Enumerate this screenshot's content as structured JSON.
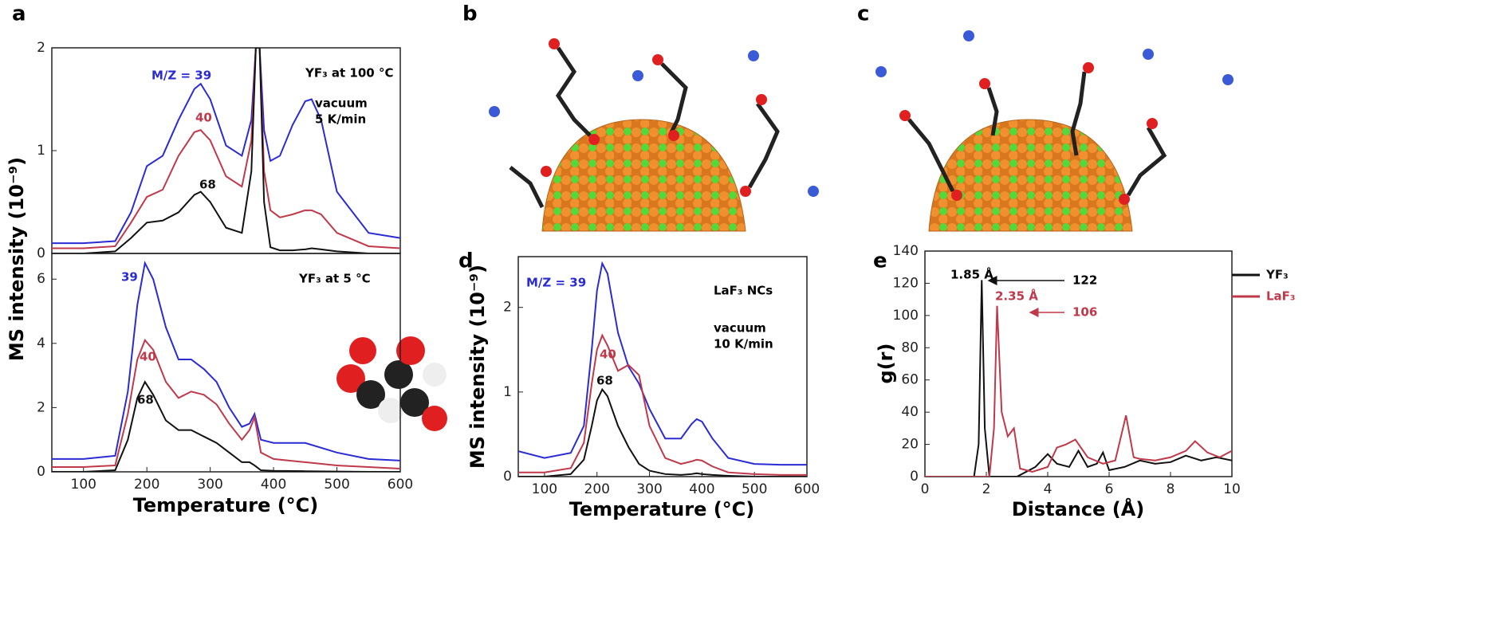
{
  "chart_data": [
    {
      "type": "line",
      "panel": "a",
      "ylabel": "MS intensity (10⁻⁹)",
      "annotations": [
        {
          "text": "YF₃ at 100 °C",
          "color": "#000000"
        },
        {
          "text": "vacuum",
          "color": "#000000"
        },
        {
          "text": "5 K/min",
          "color": "#000000"
        }
      ],
      "xlim": [
        50,
        600
      ],
      "ylim": [
        0,
        2
      ],
      "yticks": [
        0,
        1,
        2
      ],
      "x": [
        50,
        100,
        150,
        175,
        200,
        225,
        250,
        275,
        285,
        300,
        325,
        350,
        365,
        372,
        378,
        385,
        395,
        410,
        430,
        450,
        460,
        475,
        500,
        550,
        600
      ],
      "series": [
        {
          "name": "M/Z = 39",
          "color": "#2b2bd6",
          "values": [
            0.1,
            0.1,
            0.12,
            0.4,
            0.85,
            0.95,
            1.3,
            1.6,
            1.65,
            1.5,
            1.05,
            0.95,
            1.3,
            2.0,
            2.0,
            1.2,
            0.9,
            0.95,
            1.25,
            1.48,
            1.5,
            1.3,
            0.6,
            0.2,
            0.15
          ]
        },
        {
          "name": "40",
          "color": "#c0394a",
          "values": [
            0.05,
            0.05,
            0.07,
            0.3,
            0.55,
            0.62,
            0.95,
            1.18,
            1.2,
            1.1,
            0.75,
            0.65,
            1.1,
            2.0,
            2.0,
            0.8,
            0.42,
            0.35,
            0.38,
            0.42,
            0.42,
            0.38,
            0.2,
            0.07,
            0.05
          ]
        },
        {
          "name": "68",
          "color": "#111111",
          "values": [
            0,
            0,
            0.02,
            0.15,
            0.3,
            0.32,
            0.4,
            0.57,
            0.6,
            0.5,
            0.25,
            0.2,
            0.8,
            2.0,
            2.0,
            0.5,
            0.06,
            0.03,
            0.03,
            0.04,
            0.05,
            0.04,
            0.02,
            0,
            0
          ]
        }
      ]
    },
    {
      "type": "line",
      "xlabel": "Temperature (°C)",
      "annotations": [
        {
          "text": "YF₃ at 5 °C",
          "color": "#000000"
        }
      ],
      "xlim": [
        50,
        600
      ],
      "xticks": [
        100,
        200,
        300,
        400,
        500,
        600
      ],
      "ylim": [
        0,
        6.8
      ],
      "yticks": [
        0,
        2,
        4,
        6
      ],
      "x": [
        50,
        100,
        150,
        170,
        185,
        197,
        210,
        230,
        250,
        270,
        290,
        310,
        330,
        350,
        362,
        370,
        380,
        400,
        450,
        500,
        550,
        600
      ],
      "series": [
        {
          "name": "39",
          "color": "#2b2bd6",
          "values": [
            0.4,
            0.4,
            0.5,
            2.5,
            5.2,
            6.5,
            6.0,
            4.5,
            3.5,
            3.5,
            3.2,
            2.8,
            2.0,
            1.4,
            1.5,
            1.8,
            1.0,
            0.9,
            0.9,
            0.6,
            0.4,
            0.35
          ]
        },
        {
          "name": "40",
          "color": "#c0394a",
          "values": [
            0.15,
            0.15,
            0.2,
            1.8,
            3.5,
            4.1,
            3.8,
            2.8,
            2.3,
            2.5,
            2.4,
            2.1,
            1.5,
            1.0,
            1.3,
            1.7,
            0.6,
            0.4,
            0.3,
            0.2,
            0.15,
            0.1
          ]
        },
        {
          "name": "68",
          "color": "#111111",
          "values": [
            0,
            0,
            0.05,
            1.0,
            2.3,
            2.8,
            2.4,
            1.6,
            1.3,
            1.3,
            1.1,
            0.9,
            0.6,
            0.3,
            0.3,
            0.2,
            0.05,
            0.03,
            0.02,
            0.01,
            0,
            0
          ]
        }
      ]
    },
    {
      "type": "line",
      "panel": "d",
      "ylabel": "MS intensity (10⁻⁹)",
      "xlabel": "Temperature (°C)",
      "annotations": [
        {
          "text": "LaF₃ NCs",
          "color": "#000000"
        },
        {
          "text": "vacuum",
          "color": "#000000"
        },
        {
          "text": "10 K/min",
          "color": "#000000"
        }
      ],
      "xlim": [
        50,
        600
      ],
      "xticks": [
        100,
        200,
        300,
        400,
        500,
        600
      ],
      "ylim": [
        0,
        2.6
      ],
      "yticks": [
        0,
        1,
        2
      ],
      "x": [
        50,
        100,
        150,
        175,
        190,
        200,
        210,
        220,
        240,
        260,
        280,
        300,
        330,
        360,
        380,
        390,
        400,
        420,
        450,
        500,
        550,
        600
      ],
      "series": [
        {
          "name": "M/Z = 39",
          "color": "#2b2bd6",
          "values": [
            0.3,
            0.22,
            0.28,
            0.6,
            1.5,
            2.2,
            2.52,
            2.4,
            1.7,
            1.3,
            1.1,
            0.8,
            0.45,
            0.45,
            0.62,
            0.68,
            0.65,
            0.45,
            0.22,
            0.15,
            0.14,
            0.14
          ]
        },
        {
          "name": "40",
          "color": "#c0394a",
          "values": [
            0.05,
            0.05,
            0.1,
            0.4,
            1.1,
            1.5,
            1.67,
            1.55,
            1.25,
            1.32,
            1.2,
            0.6,
            0.22,
            0.15,
            0.18,
            0.2,
            0.19,
            0.12,
            0.05,
            0.03,
            0.02,
            0.02
          ]
        },
        {
          "name": "68",
          "color": "#111111",
          "values": [
            0,
            0,
            0.03,
            0.2,
            0.6,
            0.9,
            1.03,
            0.95,
            0.6,
            0.35,
            0.15,
            0.07,
            0.03,
            0.02,
            0.03,
            0.04,
            0.03,
            0.02,
            0.01,
            0,
            0,
            0
          ]
        }
      ]
    },
    {
      "type": "line",
      "panel": "e",
      "ylabel": "g(r)",
      "xlabel": "Distance (Å)",
      "legend": "upper right",
      "annotations": [
        {
          "text": "1.85 Å",
          "color": "#000000"
        },
        {
          "text": "122",
          "color": "#000000"
        },
        {
          "text": "2.35 Å",
          "color": "#c0394a"
        },
        {
          "text": "106",
          "color": "#c0394a"
        }
      ],
      "xlim": [
        0,
        10
      ],
      "xticks": [
        0,
        2,
        4,
        6,
        8,
        10
      ],
      "ylim": [
        0,
        140
      ],
      "yticks": [
        0,
        20,
        40,
        60,
        80,
        100,
        120,
        140
      ],
      "series": [
        {
          "name": "YF₃",
          "color": "#111111",
          "x": [
            0,
            1.6,
            1.75,
            1.85,
            1.95,
            2.1,
            3,
            3.3,
            3.6,
            4,
            4.3,
            4.7,
            5,
            5.3,
            5.6,
            5.8,
            6,
            6.5,
            7,
            7.5,
            8,
            8.5,
            9,
            9.5,
            10
          ],
          "values": [
            0,
            0,
            20,
            122,
            30,
            0,
            0,
            3,
            6,
            14,
            8,
            6,
            16,
            6,
            8,
            15,
            4,
            6,
            10,
            8,
            9,
            13,
            10,
            12,
            10
          ]
        },
        {
          "name": "LaF₃",
          "color": "#c0394a",
          "x": [
            0,
            2.1,
            2.25,
            2.35,
            2.5,
            2.7,
            2.9,
            3.1,
            3.5,
            4,
            4.3,
            4.6,
            4.9,
            5.3,
            5.8,
            6.2,
            6.55,
            6.8,
            7,
            7.5,
            8,
            8.5,
            8.8,
            9.2,
            9.6,
            10
          ],
          "values": [
            0,
            0,
            30,
            106,
            40,
            25,
            30,
            5,
            3,
            6,
            18,
            20,
            23,
            12,
            8,
            10,
            38,
            12,
            11,
            10,
            12,
            16,
            22,
            15,
            12,
            16
          ]
        }
      ]
    }
  ],
  "illustrations": [
    {
      "panel": "b"
    },
    {
      "panel": "c"
    }
  ]
}
